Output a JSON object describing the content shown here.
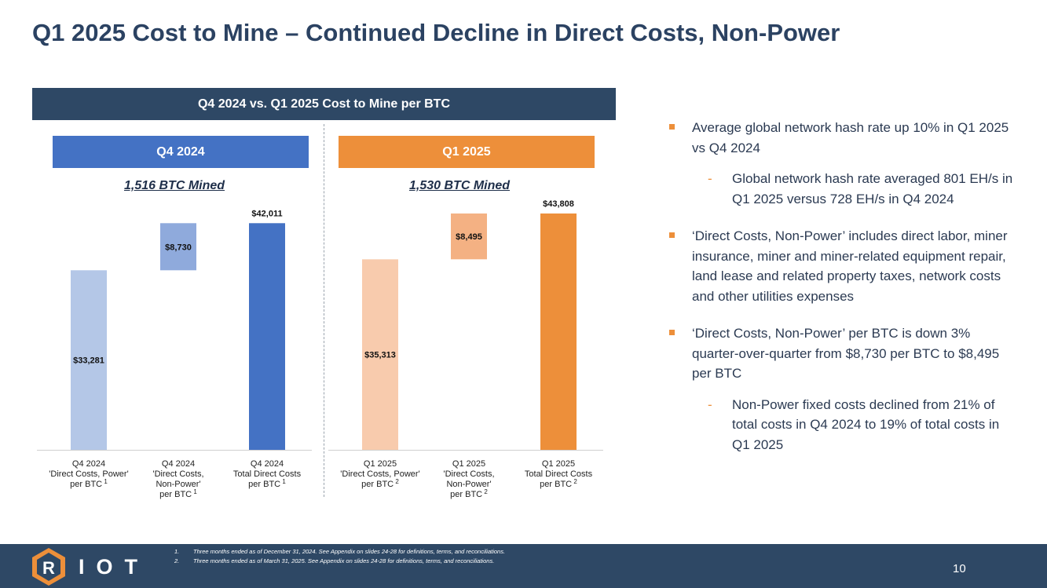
{
  "title": "Q1 2025 Cost to Mine – Continued Decline in Direct Costs, Non-Power",
  "banner": "Q4 2024 vs. Q1 2025 Cost to Mine per BTC",
  "panels": {
    "q4": {
      "header": "Q4 2024",
      "mined": "1,516 BTC Mined"
    },
    "q1": {
      "header": "Q1 2025",
      "mined": "1,530 BTC Mined"
    }
  },
  "colors": {
    "q4_power": "#b4c7e7",
    "q4_nonpower": "#8faadc",
    "q4_total": "#4472c4",
    "q1_power": "#f8cbad",
    "q1_nonpower": "#f4b183",
    "q1_total": "#ed8f3a"
  },
  "chart_data": [
    {
      "type": "bar",
      "subtype": "waterfall",
      "title": "Q4 2024",
      "subtitle": "1,516 BTC Mined",
      "categories": [
        [
          "Q4 2024",
          "'Direct Costs, Power'",
          "per BTC"
        ],
        [
          "Q4 2024",
          "'Direct Costs,",
          "Non-Power'",
          "per BTC"
        ],
        [
          "Q4 2024",
          "Total Direct Costs",
          "per BTC"
        ]
      ],
      "footnote_marks": [
        "1",
        "1",
        "1"
      ],
      "values": [
        33281,
        8730,
        42011
      ],
      "labels": [
        "$33,281",
        "$8,730",
        "$42,011"
      ],
      "ylim": [
        0,
        47000
      ]
    },
    {
      "type": "bar",
      "subtype": "waterfall",
      "title": "Q1 2025",
      "subtitle": "1,530 BTC Mined",
      "categories": [
        [
          "Q1 2025",
          "'Direct Costs, Power'",
          "per BTC"
        ],
        [
          "Q1 2025",
          "'Direct Costs,",
          "Non-Power'",
          "per BTC"
        ],
        [
          "Q1 2025",
          "Total Direct Costs",
          "per BTC"
        ]
      ],
      "footnote_marks": [
        "2",
        "2",
        "2"
      ],
      "values": [
        35313,
        8495,
        43808
      ],
      "labels": [
        "$35,313",
        "$8,495",
        "$43,808"
      ],
      "ylim": [
        0,
        47000
      ]
    }
  ],
  "bullets": [
    {
      "text": "Average global network hash rate up 10% in Q1 2025 vs Q4 2024",
      "subs": [
        "Global network hash rate averaged 801 EH/s in Q1 2025 versus 728 EH/s in Q4 2024"
      ]
    },
    {
      "text": "‘Direct Costs, Non-Power’ includes direct labor, miner insurance, miner and miner-related equipment repair, land lease and related property taxes, network costs and other utilities expenses",
      "subs": []
    },
    {
      "text": "‘Direct Costs, Non-Power’ per BTC is down 3% quarter-over-quarter from $8,730 per BTC to $8,495 per BTC",
      "subs": [
        "Non-Power fixed costs declined from 21% of total costs in Q4 2024 to 19% of total costs in Q1 2025"
      ]
    }
  ],
  "sub_marker": "-",
  "footer": {
    "logo_letter": "R",
    "logo_text": "IOT",
    "footnotes": [
      {
        "num": "1.",
        "text": "Three months ended as of December 31, 2024. See Appendix on slides 24-28 for definitions, terms, and reconciliations."
      },
      {
        "num": "2.",
        "text": "Three months ended as of March 31, 2025. See Appendix on slides 24-28 for definitions, terms, and reconciliations."
      }
    ],
    "page_number": "10"
  }
}
